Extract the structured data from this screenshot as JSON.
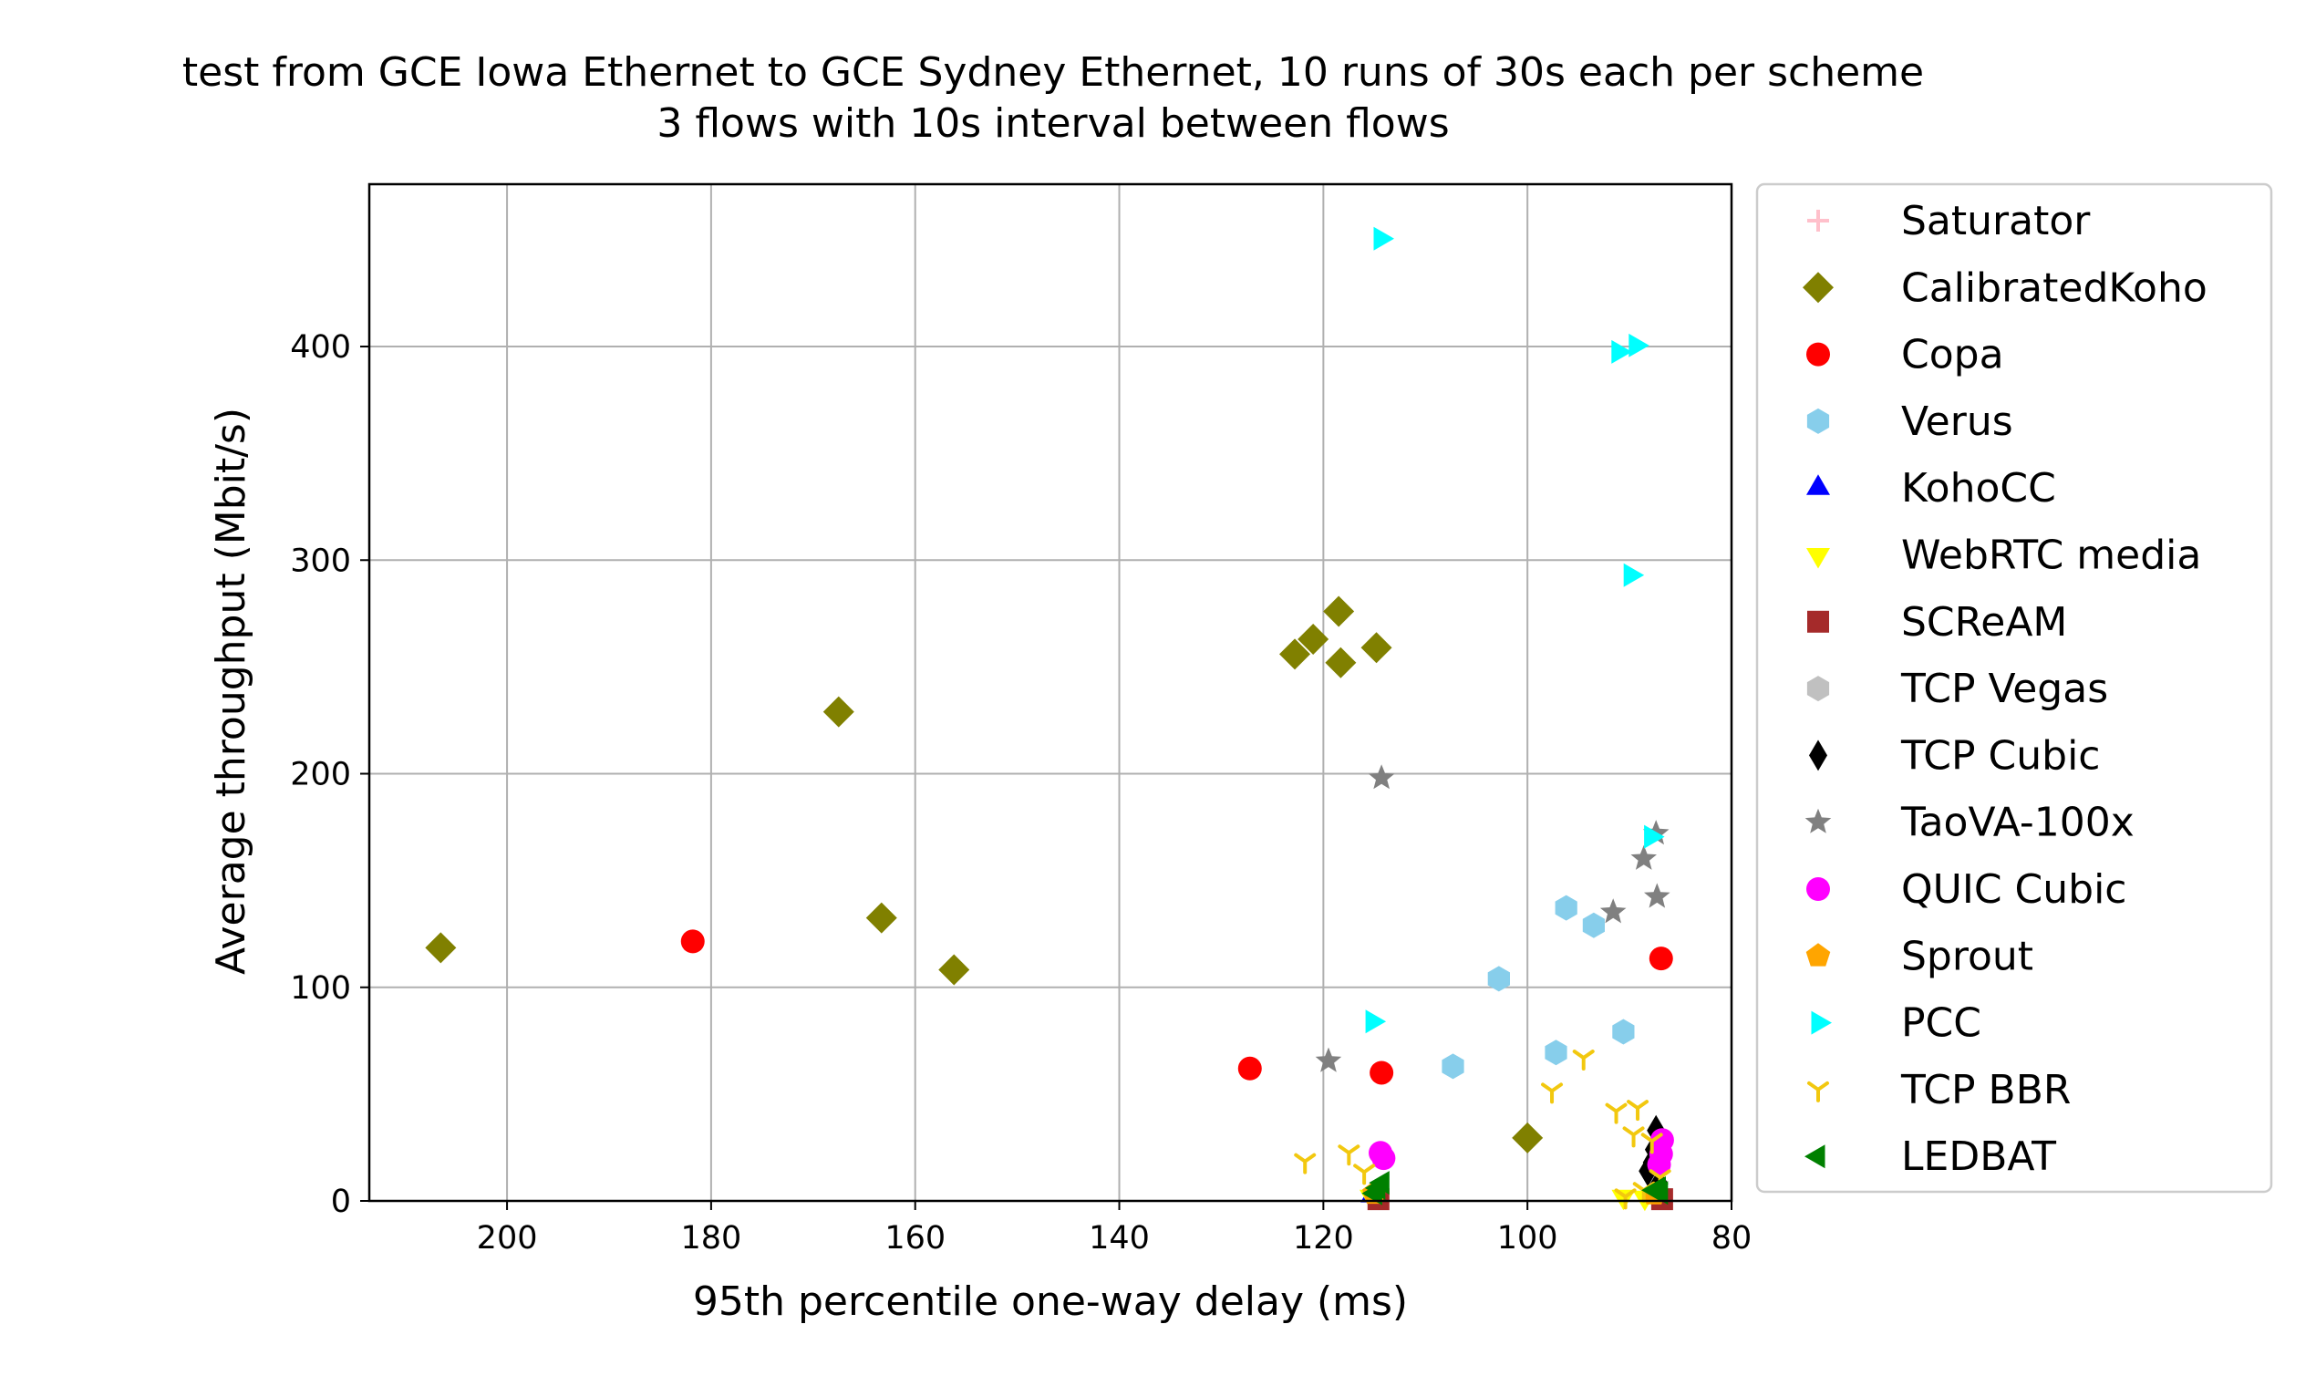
{
  "chart_data": {
    "type": "scatter",
    "title": "test from GCE Iowa Ethernet to GCE Sydney Ethernet, 10 runs of 30s each per scheme",
    "subtitle": "3 flows with 10s interval between flows",
    "xlabel": "95th percentile one-way delay (ms)",
    "ylabel": "Average throughput (Mbit/s)",
    "xlim": [
      213.5,
      80
    ],
    "x_inverted": true,
    "ylim": [
      0,
      476
    ],
    "xticks": [
      200,
      180,
      160,
      140,
      120,
      100,
      80
    ],
    "yticks": [
      0,
      100,
      200,
      300,
      400
    ],
    "grid": true,
    "legend_position": "outside-right",
    "series": [
      {
        "name": "Saturator",
        "marker": "plus",
        "color": "#ffc0cb",
        "points": []
      },
      {
        "name": "CalibratedKoho",
        "marker": "diamond",
        "color": "#808000",
        "points": [
          [
            206.5,
            118.5
          ],
          [
            167.5,
            229
          ],
          [
            163.3,
            132.5
          ],
          [
            156.2,
            108.2
          ],
          [
            122.8,
            256
          ],
          [
            121,
            263
          ],
          [
            118.5,
            276
          ],
          [
            118.3,
            252
          ],
          [
            114.8,
            259
          ],
          [
            100,
            29.5
          ]
        ]
      },
      {
        "name": "Copa",
        "marker": "circle",
        "color": "#ff0000",
        "points": [
          [
            181.8,
            121.5
          ],
          [
            127.2,
            62
          ],
          [
            114.3,
            60
          ],
          [
            86.9,
            113.5
          ]
        ]
      },
      {
        "name": "Verus",
        "marker": "hexagon",
        "color": "#87ceeb",
        "points": [
          [
            107.3,
            63
          ],
          [
            102.8,
            104
          ],
          [
            97.2,
            69.5
          ],
          [
            96.2,
            137.2
          ],
          [
            93.5,
            129
          ],
          [
            90.6,
            79.2
          ]
        ]
      },
      {
        "name": "KohoCC",
        "marker": "triangle-up",
        "color": "#0000ff",
        "points": [
          [
            115.2,
            2.5
          ],
          [
            87.2,
            2
          ]
        ]
      },
      {
        "name": "WebRTC media",
        "marker": "triangle-down",
        "color": "#ffff00",
        "points": [
          [
            115.3,
            2
          ],
          [
            90.6,
            2
          ],
          [
            88.5,
            1.6
          ],
          [
            87,
            2.5
          ]
        ]
      },
      {
        "name": "SCReAM",
        "marker": "square",
        "color": "#a52a2a",
        "points": [
          [
            114.6,
            0.8
          ],
          [
            86.8,
            0.8
          ]
        ]
      },
      {
        "name": "TCP Vegas",
        "marker": "hexagon",
        "color": "#c0c0c0",
        "points": []
      },
      {
        "name": "TCP Cubic",
        "marker": "thin-diamond",
        "color": "#000000",
        "points": [
          [
            87.4,
            33
          ],
          [
            87.8,
            18
          ],
          [
            88.2,
            14
          ],
          [
            87.6,
            24
          ],
          [
            87.1,
            8
          ]
        ]
      },
      {
        "name": "TaoVA-100x",
        "marker": "star",
        "color": "#808080",
        "points": [
          [
            114.3,
            198
          ],
          [
            119.5,
            65.5
          ],
          [
            91.6,
            135.2
          ],
          [
            88.6,
            160.2
          ],
          [
            87.4,
            172
          ],
          [
            87.3,
            142.4
          ]
        ]
      },
      {
        "name": "QUIC Cubic",
        "marker": "circle",
        "color": "#ff00ff",
        "points": [
          [
            114.4,
            22.5
          ],
          [
            114.1,
            20
          ],
          [
            86.8,
            28.5
          ],
          [
            86.9,
            22
          ],
          [
            87.1,
            17
          ]
        ]
      },
      {
        "name": "Sprout",
        "marker": "pentagon",
        "color": "#ffa500",
        "points": [
          [
            115,
            3.5
          ],
          [
            87.6,
            3.2
          ]
        ]
      },
      {
        "name": "PCC",
        "marker": "triangle-right",
        "color": "#00ffff",
        "points": [
          [
            114.4,
            450.5
          ],
          [
            91.1,
            397.5
          ],
          [
            89.4,
            400.5
          ],
          [
            89.9,
            293
          ],
          [
            87.9,
            170.5
          ],
          [
            115.2,
            84
          ]
        ]
      },
      {
        "name": "TCP BBR",
        "marker": "tri-down",
        "color": "#f2c80f",
        "points": [
          [
            121.8,
            18.5
          ],
          [
            117.5,
            22.5
          ],
          [
            116,
            13.5
          ],
          [
            97.6,
            51.5
          ],
          [
            94.5,
            67
          ],
          [
            91.3,
            42
          ],
          [
            89.2,
            43.5
          ],
          [
            89.6,
            31
          ],
          [
            87.8,
            28
          ],
          [
            90.4,
            2
          ],
          [
            88.6,
            5
          ],
          [
            87,
            11
          ]
        ]
      },
      {
        "name": "LEDBAT",
        "marker": "triangle-left",
        "color": "#008000",
        "points": [
          [
            114.6,
            6
          ],
          [
            114.2,
            8.5
          ],
          [
            114.9,
            3.5
          ],
          [
            87.1,
            6
          ],
          [
            87.5,
            5
          ],
          [
            86.9,
            3.8
          ]
        ]
      }
    ]
  }
}
